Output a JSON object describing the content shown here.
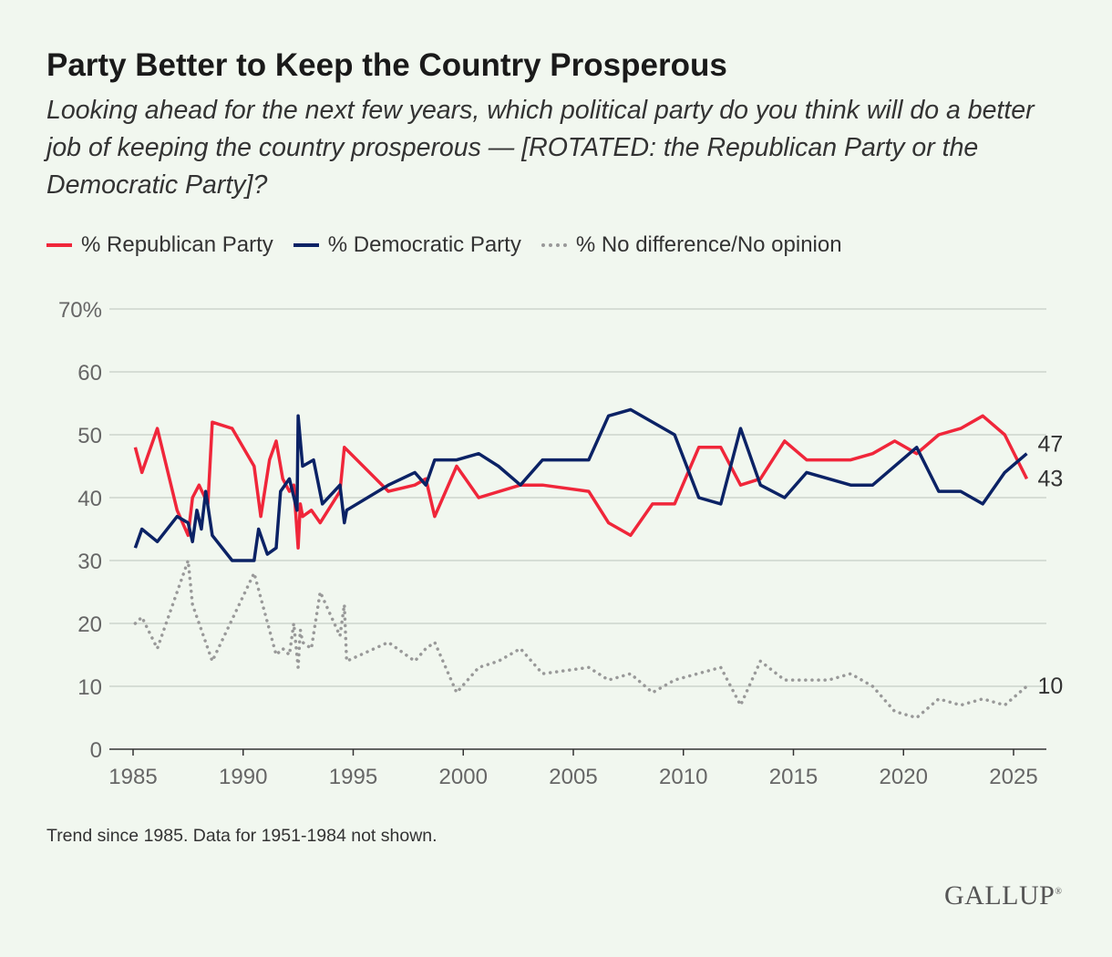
{
  "title": "Party Better to Keep the Country Prosperous",
  "subtitle": "Looking ahead for the next few years, which political party do you think will do a better job of keeping the country prosperous — [ROTATED: the Republican Party or the Democratic Party]?",
  "note": "Trend since 1985. Data for 1951-1984 not shown.",
  "logo": "GALLUP",
  "chart_data": {
    "type": "line",
    "title": "Party Better to Keep the Country Prosperous",
    "xlim": [
      1985,
      2025.6
    ],
    "ylim": [
      0,
      70
    ],
    "x_ticks": [
      "1985",
      "1990",
      "1995",
      "2000",
      "2005",
      "2010",
      "2015",
      "2020",
      "2025"
    ],
    "x_tick_values": [
      1985,
      1990,
      1995,
      2000,
      2005,
      2010,
      2015,
      2020,
      2025
    ],
    "y_ticks": [
      "0",
      "10",
      "20",
      "30",
      "40",
      "50",
      "60",
      "70%"
    ],
    "y_tick_values": [
      0,
      10,
      20,
      30,
      40,
      50,
      60,
      70
    ],
    "grid": "horizontal",
    "legend_position": "top-left",
    "series": [
      {
        "name": "% Republican Party",
        "color": "#f0263a",
        "style": "solid",
        "end_label": "43",
        "x": [
          1985.1,
          1985.4,
          1986.1,
          1987.0,
          1987.5,
          1987.7,
          1988.0,
          1988.4,
          1988.6,
          1989.5,
          1990.5,
          1990.8,
          1991.2,
          1991.5,
          1991.8,
          1992.1,
          1992.3,
          1992.5,
          1992.6,
          1992.7,
          1993.1,
          1993.5,
          1994.4,
          1994.6,
          1996.6,
          1997.8,
          1998.3,
          1998.7,
          1999.7,
          2000.7,
          2002.6,
          2003.6,
          2005.7,
          2006.6,
          2007.6,
          2008.6,
          2009.6,
          2010.7,
          2011.7,
          2012.6,
          2013.5,
          2014.6,
          2015.6,
          2017.6,
          2018.6,
          2019.6,
          2020.6,
          2021.6,
          2022.6,
          2023.6,
          2024.6,
          2025.6
        ],
        "y": [
          48,
          44,
          51,
          38,
          34,
          40,
          42,
          39,
          52,
          51,
          45,
          37,
          46,
          49,
          43,
          41,
          42,
          32,
          39,
          37,
          38,
          36,
          41,
          48,
          41,
          42,
          43,
          37,
          45,
          40,
          42,
          42,
          41,
          36,
          34,
          39,
          39,
          48,
          48,
          42,
          43,
          49,
          46,
          46,
          47,
          49,
          47,
          50,
          51,
          53,
          50,
          43
        ]
      },
      {
        "name": "% Democratic Party",
        "color": "#0b2265",
        "style": "solid",
        "end_label": "47",
        "x": [
          1985.1,
          1985.4,
          1986.1,
          1987.0,
          1987.5,
          1987.7,
          1987.9,
          1988.1,
          1988.3,
          1988.6,
          1989.5,
          1990.5,
          1990.7,
          1991.1,
          1991.5,
          1991.7,
          1992.1,
          1992.45,
          1992.5,
          1992.7,
          1993.2,
          1993.6,
          1994.4,
          1994.6,
          1994.7,
          1996.6,
          1997.8,
          1998.3,
          1998.7,
          1999.7,
          2000.7,
          2001.6,
          2002.6,
          2003.6,
          2005.7,
          2006.6,
          2007.6,
          2009.6,
          2010.7,
          2011.7,
          2012.6,
          2013.5,
          2014.6,
          2015.6,
          2017.6,
          2018.6,
          2020.6,
          2021.6,
          2022.6,
          2023.6,
          2024.6,
          2025.6
        ],
        "y": [
          32,
          35,
          33,
          37,
          36,
          33,
          38,
          35,
          41,
          34,
          30,
          30,
          35,
          31,
          32,
          41,
          43,
          38,
          53,
          45,
          46,
          39,
          42,
          36,
          38,
          42,
          44,
          42,
          46,
          46,
          47,
          45,
          42,
          46,
          46,
          53,
          54,
          50,
          40,
          39,
          51,
          42,
          40,
          44,
          42,
          42,
          48,
          41,
          41,
          39,
          44,
          47
        ]
      },
      {
        "name": "% No difference/No opinion",
        "color": "#999999",
        "style": "dotted",
        "end_label": "10",
        "x": [
          1985.1,
          1985.4,
          1986.1,
          1987.5,
          1987.7,
          1987.9,
          1988.6,
          1990.5,
          1991.5,
          1991.8,
          1992.1,
          1992.3,
          1992.5,
          1992.6,
          1992.7,
          1993.1,
          1993.5,
          1994.4,
          1994.6,
          1994.7,
          1996.6,
          1997.8,
          1998.3,
          1998.7,
          1999.7,
          2000.7,
          2001.6,
          2002.6,
          2003.6,
          2005.7,
          2006.6,
          2007.6,
          2008.6,
          2009.6,
          2011.7,
          2012.6,
          2013.5,
          2014.6,
          2016.6,
          2017.6,
          2018.6,
          2019.6,
          2020.6,
          2021.6,
          2022.6,
          2023.6,
          2024.6,
          2025.6
        ],
        "y": [
          20,
          21,
          16,
          30,
          23,
          21,
          14,
          28,
          15,
          16,
          15,
          20,
          13,
          19,
          17,
          16,
          25,
          18,
          23,
          14,
          17,
          14,
          16,
          17,
          9,
          13,
          14,
          16,
          12,
          13,
          11,
          12,
          9,
          11,
          13,
          7,
          14,
          11,
          11,
          12,
          10,
          6,
          5,
          8,
          7,
          8,
          7,
          10
        ]
      }
    ]
  }
}
